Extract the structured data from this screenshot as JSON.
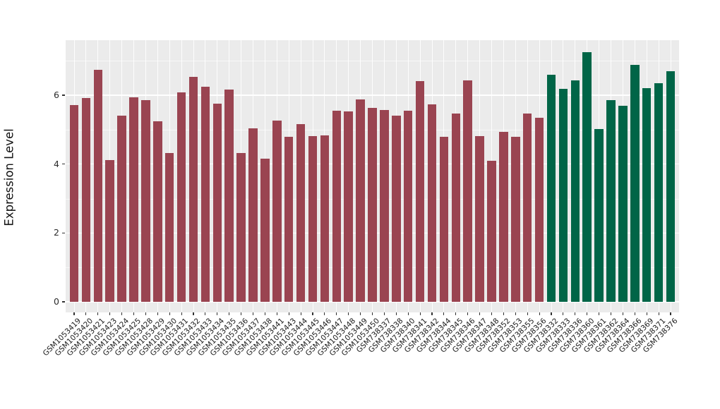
{
  "chart_data": {
    "type": "bar",
    "title": "",
    "xlabel": "",
    "ylabel": "Expression Level",
    "ylim": [
      0,
      7.6
    ],
    "yticks": [
      0,
      2,
      4,
      6
    ],
    "minor_gridlines": [
      1,
      3,
      5,
      7
    ],
    "grid": "on",
    "legend_position": "none",
    "panel_background": "#ebebeb",
    "gridline_color": "#ffffff",
    "groups": [
      {
        "name": "group-red",
        "color": "#9a4451"
      },
      {
        "name": "group-green",
        "color": "#006547"
      }
    ],
    "bars": [
      {
        "label": "GSM1053419",
        "value": 5.71,
        "group": 0
      },
      {
        "label": "GSM1053420",
        "value": 5.92,
        "group": 0
      },
      {
        "label": "GSM1053421",
        "value": 6.73,
        "group": 0
      },
      {
        "label": "GSM1053423",
        "value": 4.12,
        "group": 0
      },
      {
        "label": "GSM1053424",
        "value": 5.4,
        "group": 0
      },
      {
        "label": "GSM1053425",
        "value": 5.94,
        "group": 0
      },
      {
        "label": "GSM1053428",
        "value": 5.86,
        "group": 0
      },
      {
        "label": "GSM1053429",
        "value": 5.24,
        "group": 0
      },
      {
        "label": "GSM1053430",
        "value": 4.33,
        "group": 0
      },
      {
        "label": "GSM1053431",
        "value": 6.08,
        "group": 0
      },
      {
        "label": "GSM1053432",
        "value": 6.54,
        "group": 0
      },
      {
        "label": "GSM1053433",
        "value": 6.25,
        "group": 0
      },
      {
        "label": "GSM1053434",
        "value": 5.75,
        "group": 0
      },
      {
        "label": "GSM1053435",
        "value": 6.16,
        "group": 0
      },
      {
        "label": "GSM1053436",
        "value": 4.33,
        "group": 0
      },
      {
        "label": "GSM1053437",
        "value": 5.04,
        "group": 0
      },
      {
        "label": "GSM1053438",
        "value": 4.15,
        "group": 0
      },
      {
        "label": "GSM1053441",
        "value": 5.26,
        "group": 0
      },
      {
        "label": "GSM1053443",
        "value": 4.79,
        "group": 0
      },
      {
        "label": "GSM1053444",
        "value": 5.16,
        "group": 0
      },
      {
        "label": "GSM1053445",
        "value": 4.81,
        "group": 0
      },
      {
        "label": "GSM1053446",
        "value": 4.83,
        "group": 0
      },
      {
        "label": "GSM1053447",
        "value": 5.56,
        "group": 0
      },
      {
        "label": "GSM1053448",
        "value": 5.53,
        "group": 0
      },
      {
        "label": "GSM1053449",
        "value": 5.87,
        "group": 0
      },
      {
        "label": "GSM1053450",
        "value": 5.64,
        "group": 0
      },
      {
        "label": "GSM738337",
        "value": 5.58,
        "group": 0
      },
      {
        "label": "GSM738338",
        "value": 5.4,
        "group": 0
      },
      {
        "label": "GSM738340",
        "value": 5.56,
        "group": 0
      },
      {
        "label": "GSM738341",
        "value": 6.41,
        "group": 0
      },
      {
        "label": "GSM738342",
        "value": 5.73,
        "group": 0
      },
      {
        "label": "GSM738344",
        "value": 4.79,
        "group": 0
      },
      {
        "label": "GSM738345",
        "value": 5.47,
        "group": 0
      },
      {
        "label": "GSM738346",
        "value": 6.43,
        "group": 0
      },
      {
        "label": "GSM738347",
        "value": 4.81,
        "group": 0
      },
      {
        "label": "GSM738348",
        "value": 4.09,
        "group": 0
      },
      {
        "label": "GSM738352",
        "value": 4.93,
        "group": 0
      },
      {
        "label": "GSM738353",
        "value": 4.79,
        "group": 0
      },
      {
        "label": "GSM738355",
        "value": 5.47,
        "group": 0
      },
      {
        "label": "GSM738356",
        "value": 5.34,
        "group": 0
      },
      {
        "label": "GSM738332",
        "value": 6.59,
        "group": 1
      },
      {
        "label": "GSM738333",
        "value": 6.18,
        "group": 1
      },
      {
        "label": "GSM738336",
        "value": 6.43,
        "group": 1
      },
      {
        "label": "GSM738360",
        "value": 7.25,
        "group": 1
      },
      {
        "label": "GSM738361",
        "value": 5.02,
        "group": 1
      },
      {
        "label": "GSM738362",
        "value": 5.86,
        "group": 1
      },
      {
        "label": "GSM738364",
        "value": 5.69,
        "group": 1
      },
      {
        "label": "GSM738366",
        "value": 6.88,
        "group": 1
      },
      {
        "label": "GSM738369",
        "value": 6.2,
        "group": 1
      },
      {
        "label": "GSM738371",
        "value": 6.34,
        "group": 1
      },
      {
        "label": "GSM738376",
        "value": 6.69,
        "group": 1
      }
    ]
  }
}
